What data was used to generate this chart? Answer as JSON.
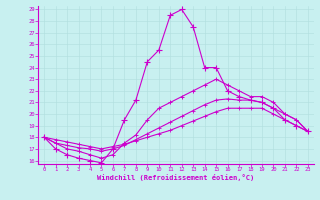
{
  "xlabel": "Windchill (Refroidissement éolien,°C)",
  "bg_color": "#c8f0f0",
  "grid_color": "#b0dede",
  "line_color": "#cc00cc",
  "xlim": [
    0,
    23
  ],
  "ylim": [
    16,
    29
  ],
  "yticks": [
    16,
    17,
    18,
    19,
    20,
    21,
    22,
    23,
    24,
    25,
    26,
    27,
    28,
    29
  ],
  "xticks": [
    0,
    1,
    2,
    3,
    4,
    5,
    6,
    7,
    8,
    9,
    10,
    11,
    12,
    13,
    14,
    15,
    16,
    17,
    18,
    19,
    20,
    21,
    22,
    23
  ],
  "line1_x": [
    0,
    1,
    2,
    3,
    4,
    5,
    6,
    7,
    8,
    9,
    10,
    11,
    12,
    13,
    14,
    15,
    16,
    17,
    18,
    19,
    20,
    21,
    22,
    23
  ],
  "line1_y": [
    18,
    17,
    16.5,
    16.2,
    16,
    15.8,
    17,
    19.5,
    21.2,
    24.5,
    25.5,
    28.5,
    29,
    27.5,
    24,
    24,
    22,
    21.5,
    21.2,
    21,
    20.5,
    19.5,
    19,
    18.5
  ],
  "line2_x": [
    0,
    1,
    2,
    3,
    4,
    5,
    6,
    7,
    8,
    9,
    10,
    11,
    12,
    13,
    14,
    15,
    16,
    17,
    18,
    19,
    20,
    21,
    22,
    23
  ],
  "line2_y": [
    18,
    17.5,
    17,
    16.8,
    16.5,
    16.2,
    16.5,
    17.5,
    18.2,
    19.5,
    20.5,
    21,
    21.5,
    22,
    22.5,
    23,
    22.5,
    22,
    21.5,
    21.5,
    21,
    20,
    19.5,
    18.5
  ],
  "line3_x": [
    0,
    1,
    2,
    3,
    4,
    5,
    6,
    7,
    8,
    9,
    10,
    11,
    12,
    13,
    14,
    15,
    16,
    17,
    18,
    19,
    20,
    21,
    22,
    23
  ],
  "line3_y": [
    18,
    17.5,
    17.3,
    17.1,
    17,
    16.8,
    17,
    17.3,
    17.8,
    18.3,
    18.8,
    19.3,
    19.8,
    20.3,
    20.8,
    21.2,
    21.3,
    21.2,
    21.2,
    21,
    20.5,
    20,
    19.5,
    18.5
  ],
  "line4_x": [
    0,
    1,
    2,
    3,
    4,
    5,
    6,
    7,
    8,
    9,
    10,
    11,
    12,
    13,
    14,
    15,
    16,
    17,
    18,
    19,
    20,
    21,
    22,
    23
  ],
  "line4_y": [
    18,
    17.8,
    17.6,
    17.4,
    17.2,
    17,
    17.2,
    17.4,
    17.7,
    18,
    18.3,
    18.6,
    19,
    19.4,
    19.8,
    20.2,
    20.5,
    20.5,
    20.5,
    20.5,
    20,
    19.5,
    19,
    18.5
  ]
}
